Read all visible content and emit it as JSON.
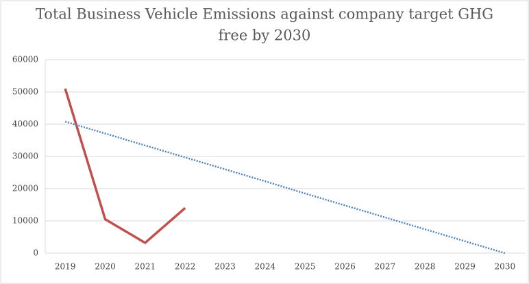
{
  "chart_data": {
    "type": "line",
    "title": [
      "Total Business Vehicle Emissions against company target GHG",
      "free by 2030"
    ],
    "categories": [
      "2019",
      "2020",
      "2021",
      "2022",
      "2023",
      "2024",
      "2025",
      "2026",
      "2027",
      "2028",
      "2029",
      "2030"
    ],
    "series": [
      {
        "color": "#c0504d",
        "style": "solid",
        "values": [
          51000,
          10500,
          3200,
          14000,
          null,
          null,
          null,
          null,
          null,
          null,
          null,
          null
        ]
      },
      {
        "color": "#4f81bd",
        "style": "dotted",
        "values": [
          40800,
          37100,
          33400,
          29700,
          26000,
          22300,
          18500,
          14800,
          11100,
          7400,
          3700,
          0
        ]
      }
    ],
    "ylim": [
      0,
      60000
    ],
    "yticks": [
      0,
      10000,
      20000,
      30000,
      40000,
      50000,
      60000
    ],
    "grid": true
  }
}
